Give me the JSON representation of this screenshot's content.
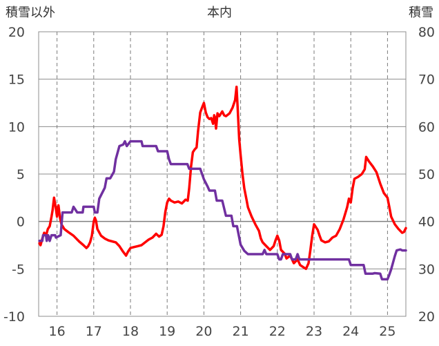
{
  "chart_data": {
    "type": "line",
    "title": "本内",
    "left_axis_label": "積雪以外",
    "right_axis_label": "積雪",
    "left_ylim": [
      -10,
      20
    ],
    "left_yticks": [
      "20",
      "15",
      "10",
      "5",
      "0",
      "-5",
      "-10"
    ],
    "right_ylim": [
      20,
      80
    ],
    "right_yticks": [
      "80",
      "70",
      "60",
      "50",
      "40",
      "30",
      "20"
    ],
    "xlim": [
      15.5,
      25.5
    ],
    "xticks": [
      "16",
      "17",
      "18",
      "19",
      "20",
      "21",
      "22",
      "23",
      "24",
      "25"
    ],
    "grid": true,
    "series": [
      {
        "name": "",
        "color": "#ff0000",
        "axis": "left",
        "points": [
          [
            15.52,
            -2.3
          ],
          [
            15.55,
            -2.5
          ],
          [
            15.6,
            -1.8
          ],
          [
            15.65,
            -1.2
          ],
          [
            15.7,
            -1.5
          ],
          [
            15.75,
            -0.8
          ],
          [
            15.8,
            -0.5
          ],
          [
            15.85,
            0.5
          ],
          [
            15.88,
            1.2
          ],
          [
            15.92,
            2.5
          ],
          [
            15.96,
            1.6
          ],
          [
            16.0,
            0.5
          ],
          [
            16.04,
            1.7
          ],
          [
            16.08,
            0.4
          ],
          [
            16.12,
            -0.3
          ],
          [
            16.2,
            -0.8
          ],
          [
            16.3,
            -1.1
          ],
          [
            16.45,
            -1.5
          ],
          [
            16.6,
            -2.1
          ],
          [
            16.72,
            -2.5
          ],
          [
            16.8,
            -2.8
          ],
          [
            16.85,
            -2.6
          ],
          [
            16.9,
            -2.2
          ],
          [
            16.95,
            -1.5
          ],
          [
            17.0,
            0.0
          ],
          [
            17.03,
            0.4
          ],
          [
            17.06,
            0.1
          ],
          [
            17.1,
            -0.8
          ],
          [
            17.2,
            -1.5
          ],
          [
            17.3,
            -1.8
          ],
          [
            17.4,
            -2.0
          ],
          [
            17.5,
            -2.1
          ],
          [
            17.6,
            -2.2
          ],
          [
            17.7,
            -2.6
          ],
          [
            17.8,
            -3.2
          ],
          [
            17.88,
            -3.6
          ],
          [
            17.93,
            -3.2
          ],
          [
            18.0,
            -2.8
          ],
          [
            18.1,
            -2.7
          ],
          [
            18.2,
            -2.6
          ],
          [
            18.3,
            -2.5
          ],
          [
            18.4,
            -2.2
          ],
          [
            18.5,
            -1.9
          ],
          [
            18.6,
            -1.7
          ],
          [
            18.7,
            -1.3
          ],
          [
            18.78,
            -1.6
          ],
          [
            18.85,
            -1.4
          ],
          [
            18.9,
            -0.5
          ],
          [
            18.95,
            1.0
          ],
          [
            19.0,
            2.0
          ],
          [
            19.05,
            2.4
          ],
          [
            19.1,
            2.2
          ],
          [
            19.2,
            2.0
          ],
          [
            19.3,
            2.1
          ],
          [
            19.4,
            1.9
          ],
          [
            19.5,
            2.3
          ],
          [
            19.56,
            2.2
          ],
          [
            19.6,
            3.5
          ],
          [
            19.65,
            5.8
          ],
          [
            19.7,
            7.3
          ],
          [
            19.75,
            7.6
          ],
          [
            19.8,
            7.8
          ],
          [
            19.84,
            9.5
          ],
          [
            19.9,
            11.5
          ],
          [
            19.95,
            12.0
          ],
          [
            20.0,
            12.5
          ],
          [
            20.05,
            11.5
          ],
          [
            20.1,
            11.0
          ],
          [
            20.15,
            10.8
          ],
          [
            20.2,
            10.9
          ],
          [
            20.25,
            10.3
          ],
          [
            20.28,
            11.2
          ],
          [
            20.3,
            11.0
          ],
          [
            20.33,
            9.8
          ],
          [
            20.37,
            11.4
          ],
          [
            20.42,
            11.1
          ],
          [
            20.5,
            11.6
          ],
          [
            20.55,
            11.2
          ],
          [
            20.6,
            11.1
          ],
          [
            20.7,
            11.4
          ],
          [
            20.78,
            12.0
          ],
          [
            20.85,
            12.8
          ],
          [
            20.89,
            14.2
          ],
          [
            20.92,
            12.0
          ],
          [
            20.96,
            8.7
          ],
          [
            21.0,
            7.0
          ],
          [
            21.05,
            5.0
          ],
          [
            21.1,
            3.5
          ],
          [
            21.15,
            2.5
          ],
          [
            21.2,
            1.5
          ],
          [
            21.3,
            0.5
          ],
          [
            21.4,
            -0.3
          ],
          [
            21.5,
            -1.0
          ],
          [
            21.55,
            -1.8
          ],
          [
            21.6,
            -2.2
          ],
          [
            21.7,
            -2.6
          ],
          [
            21.8,
            -3.0
          ],
          [
            21.9,
            -2.6
          ],
          [
            21.95,
            -2.0
          ],
          [
            22.0,
            -1.5
          ],
          [
            22.05,
            -2.0
          ],
          [
            22.1,
            -3.0
          ],
          [
            22.2,
            -3.4
          ],
          [
            22.25,
            -3.9
          ],
          [
            22.35,
            -3.6
          ],
          [
            22.45,
            -4.4
          ],
          [
            22.55,
            -4.0
          ],
          [
            22.62,
            -4.6
          ],
          [
            22.7,
            -4.8
          ],
          [
            22.78,
            -5.0
          ],
          [
            22.85,
            -4.4
          ],
          [
            22.9,
            -3.0
          ],
          [
            22.95,
            -1.5
          ],
          [
            23.0,
            -0.3
          ],
          [
            23.05,
            -0.6
          ],
          [
            23.1,
            -0.9
          ],
          [
            23.15,
            -1.5
          ],
          [
            23.2,
            -2.0
          ],
          [
            23.3,
            -2.2
          ],
          [
            23.4,
            -2.1
          ],
          [
            23.5,
            -1.7
          ],
          [
            23.6,
            -1.5
          ],
          [
            23.7,
            -0.8
          ],
          [
            23.8,
            0.2
          ],
          [
            23.9,
            1.5
          ],
          [
            23.95,
            2.4
          ],
          [
            24.0,
            2.0
          ],
          [
            24.05,
            3.5
          ],
          [
            24.1,
            4.5
          ],
          [
            24.15,
            4.6
          ],
          [
            24.2,
            4.7
          ],
          [
            24.3,
            5.0
          ],
          [
            24.38,
            5.5
          ],
          [
            24.42,
            6.8
          ],
          [
            24.5,
            6.3
          ],
          [
            24.6,
            5.8
          ],
          [
            24.7,
            5.2
          ],
          [
            24.8,
            4.0
          ],
          [
            24.9,
            3.0
          ],
          [
            25.0,
            2.5
          ],
          [
            25.05,
            1.5
          ],
          [
            25.1,
            0.5
          ],
          [
            25.2,
            -0.3
          ],
          [
            25.3,
            -0.8
          ],
          [
            25.4,
            -1.2
          ],
          [
            25.45,
            -1.1
          ],
          [
            25.5,
            -0.7
          ]
        ]
      },
      {
        "name": "",
        "color": "#7030a0",
        "axis": "right",
        "points": [
          [
            15.52,
            35.9
          ],
          [
            15.6,
            35.9
          ],
          [
            15.62,
            37.1
          ],
          [
            15.7,
            37.1
          ],
          [
            15.72,
            35.9
          ],
          [
            15.76,
            37.1
          ],
          [
            15.8,
            35.9
          ],
          [
            15.85,
            37.1
          ],
          [
            15.95,
            37.1
          ],
          [
            15.97,
            36.6
          ],
          [
            16.1,
            37.1
          ],
          [
            16.15,
            41.9
          ],
          [
            16.4,
            41.9
          ],
          [
            16.45,
            43.1
          ],
          [
            16.55,
            41.9
          ],
          [
            16.7,
            41.9
          ],
          [
            16.72,
            43.1
          ],
          [
            17.0,
            43.1
          ],
          [
            17.03,
            41.9
          ],
          [
            17.1,
            41.9
          ],
          [
            17.15,
            44.8
          ],
          [
            17.3,
            47.1
          ],
          [
            17.35,
            49.1
          ],
          [
            17.45,
            49.1
          ],
          [
            17.55,
            50.5
          ],
          [
            17.6,
            53.1
          ],
          [
            17.7,
            55.9
          ],
          [
            17.8,
            56.2
          ],
          [
            17.85,
            56.9
          ],
          [
            17.9,
            55.9
          ],
          [
            18.0,
            56.9
          ],
          [
            18.3,
            56.9
          ],
          [
            18.33,
            55.9
          ],
          [
            18.7,
            55.9
          ],
          [
            18.75,
            54.8
          ],
          [
            19.0,
            54.8
          ],
          [
            19.05,
            53.1
          ],
          [
            19.1,
            52.1
          ],
          [
            19.3,
            52.1
          ],
          [
            19.55,
            52.1
          ],
          [
            19.6,
            51.1
          ],
          [
            19.7,
            51.1
          ],
          [
            19.9,
            51.1
          ],
          [
            20.0,
            48.9
          ],
          [
            20.1,
            47.4
          ],
          [
            20.15,
            46.5
          ],
          [
            20.3,
            46.5
          ],
          [
            20.35,
            44.4
          ],
          [
            20.5,
            44.4
          ],
          [
            20.6,
            41.2
          ],
          [
            20.75,
            41.2
          ],
          [
            20.8,
            39.0
          ],
          [
            20.9,
            39.0
          ],
          [
            21.0,
            35.1
          ],
          [
            21.1,
            33.8
          ],
          [
            21.2,
            33.1
          ],
          [
            21.35,
            33.1
          ],
          [
            21.5,
            33.1
          ],
          [
            21.6,
            33.1
          ],
          [
            21.65,
            34.0
          ],
          [
            21.7,
            33.1
          ],
          [
            22.0,
            33.1
          ],
          [
            22.05,
            32.0
          ],
          [
            22.1,
            32.0
          ],
          [
            22.15,
            33.1
          ],
          [
            22.35,
            33.1
          ],
          [
            22.4,
            32.0
          ],
          [
            22.5,
            32.0
          ],
          [
            22.55,
            33.1
          ],
          [
            22.6,
            32.0
          ],
          [
            23.0,
            32.0
          ],
          [
            23.5,
            32.0
          ],
          [
            23.95,
            32.0
          ],
          [
            24.0,
            30.8
          ],
          [
            24.35,
            30.8
          ],
          [
            24.4,
            29.0
          ],
          [
            24.6,
            29.0
          ],
          [
            24.65,
            29.1
          ],
          [
            24.8,
            29.0
          ],
          [
            24.85,
            27.8
          ],
          [
            25.0,
            27.8
          ],
          [
            25.05,
            28.8
          ],
          [
            25.1,
            29.9
          ],
          [
            25.2,
            32.7
          ],
          [
            25.25,
            33.9
          ],
          [
            25.35,
            34.1
          ],
          [
            25.4,
            33.9
          ],
          [
            25.5,
            33.9
          ]
        ]
      }
    ]
  }
}
